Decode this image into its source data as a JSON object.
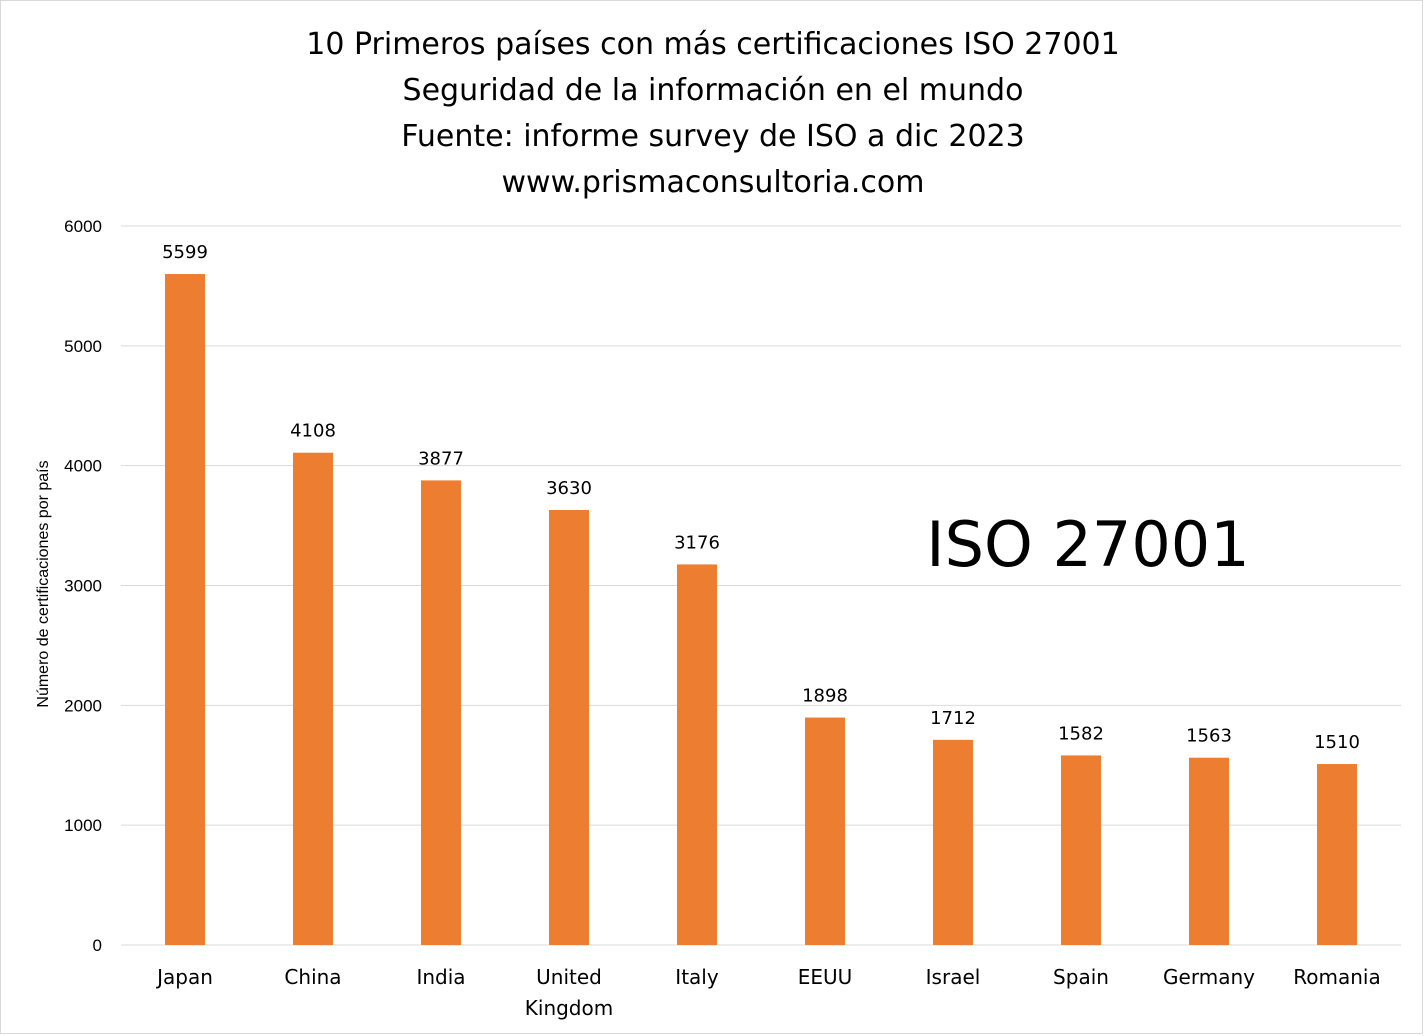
{
  "chart_data": {
    "type": "bar",
    "title_lines": [
      "10 Primeros países con más certificaciones ISO 27001",
      "Seguridad de la información en el mundo",
      "Fuente: informe survey de ISO  a dic 2023",
      "www.prismaconsultoria.com"
    ],
    "ylabel": "Número de certificaciones por país",
    "xlabel": "",
    "annotation": "ISO 27001",
    "categories": [
      [
        "Japan"
      ],
      [
        "China"
      ],
      [
        "India"
      ],
      [
        "United",
        "Kingdom"
      ],
      [
        "Italy"
      ],
      [
        "EEUU"
      ],
      [
        "Israel"
      ],
      [
        "Spain"
      ],
      [
        "Germany"
      ],
      [
        "Romania"
      ]
    ],
    "values": [
      5599,
      4108,
      3877,
      3630,
      3176,
      1898,
      1712,
      1582,
      1563,
      1510
    ],
    "yticks": [
      "0",
      "1000",
      "2000",
      "3000",
      "4000",
      "5000",
      "6000"
    ],
    "ylim": [
      0,
      6000
    ],
    "grid": true,
    "legend": "none",
    "bar_color": "#ed7d31",
    "grid_color": "#d9d9d9"
  }
}
